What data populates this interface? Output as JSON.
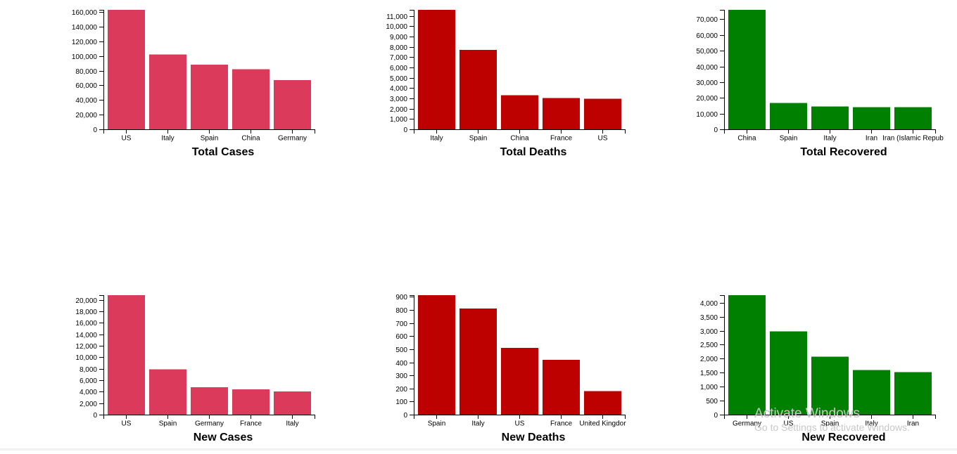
{
  "colors": {
    "cases": "#dc3a5a",
    "deaths": "#bd0000",
    "recovered": "#008000"
  },
  "chart_data": [
    {
      "type": "bar",
      "title": "Total Cases",
      "color_key": "cases",
      "categories": [
        "US",
        "Italy",
        "Spain",
        "China",
        "Germany"
      ],
      "values": [
        163000,
        102000,
        88000,
        82000,
        67000
      ],
      "ylim": [
        0,
        163000
      ],
      "ticks": [
        0,
        20000,
        40000,
        60000,
        80000,
        100000,
        120000,
        140000,
        160000
      ],
      "tick_labels": [
        "0",
        "20,000",
        "40,000",
        "60,000",
        "80,000",
        "100,000",
        "120,000",
        "140,000",
        "160,000"
      ]
    },
    {
      "type": "bar",
      "title": "Total Deaths",
      "color_key": "deaths",
      "categories": [
        "Italy",
        "Spain",
        "China",
        "France",
        "US"
      ],
      "values": [
        11600,
        7700,
        3300,
        3030,
        2980
      ],
      "ylim": [
        0,
        11600
      ],
      "ticks": [
        0,
        1000,
        2000,
        3000,
        4000,
        5000,
        6000,
        7000,
        8000,
        9000,
        10000,
        11000
      ],
      "tick_labels": [
        "0",
        "1,000",
        "2,000",
        "3,000",
        "4,000",
        "5,000",
        "6,000",
        "7,000",
        "8,000",
        "9,000",
        "10,000",
        "11,000"
      ]
    },
    {
      "type": "bar",
      "title": "Total Recovered",
      "color_key": "recovered",
      "categories": [
        "China",
        "Spain",
        "Italy",
        "Iran",
        "Iran (Islamic Repub"
      ],
      "values": [
        76000,
        16800,
        14600,
        14000,
        14000
      ],
      "ylim": [
        0,
        76000
      ],
      "ticks": [
        0,
        10000,
        20000,
        30000,
        40000,
        50000,
        60000,
        70000
      ],
      "tick_labels": [
        "0",
        "10,000",
        "20,000",
        "30,000",
        "40,000",
        "50,000",
        "60,000",
        "70,000"
      ]
    },
    {
      "type": "bar",
      "title": "New Cases",
      "color_key": "cases",
      "categories": [
        "US",
        "Spain",
        "Germany",
        "France",
        "Italy"
      ],
      "values": [
        20800,
        7900,
        4800,
        4400,
        4050
      ],
      "ylim": [
        0,
        20800
      ],
      "ticks": [
        0,
        2000,
        4000,
        6000,
        8000,
        10000,
        12000,
        14000,
        16000,
        18000,
        20000
      ],
      "tick_labels": [
        "0",
        "2,000",
        "4,000",
        "6,000",
        "8,000",
        "10,000",
        "12,000",
        "14,000",
        "16,000",
        "18,000",
        "20,000"
      ]
    },
    {
      "type": "bar",
      "title": "New Deaths",
      "color_key": "deaths",
      "categories": [
        "Spain",
        "Italy",
        "US",
        "France",
        "United Kingdor"
      ],
      "values": [
        913,
        812,
        510,
        418,
        180
      ],
      "ylim": [
        0,
        913
      ],
      "ticks": [
        0,
        100,
        200,
        300,
        400,
        500,
        600,
        700,
        800,
        900
      ],
      "tick_labels": [
        "0",
        "100",
        "200",
        "300",
        "400",
        "500",
        "600",
        "700",
        "800",
        "900"
      ]
    },
    {
      "type": "bar",
      "title": "New Recovered",
      "color_key": "recovered",
      "categories": [
        "Germany",
        "US",
        "Spain",
        "Italy",
        "Iran"
      ],
      "values": [
        4270,
        2980,
        2070,
        1590,
        1520
      ],
      "ylim": [
        0,
        4270
      ],
      "ticks": [
        0,
        500,
        1000,
        1500,
        2000,
        2500,
        3000,
        3500,
        4000
      ],
      "tick_labels": [
        "0",
        "500",
        "1,000",
        "1,500",
        "2,000",
        "2,500",
        "3,000",
        "3,500",
        "4,000"
      ]
    }
  ],
  "watermark": {
    "title": "Activate Windows",
    "subtitle": "Go to Settings to activate Windows."
  }
}
